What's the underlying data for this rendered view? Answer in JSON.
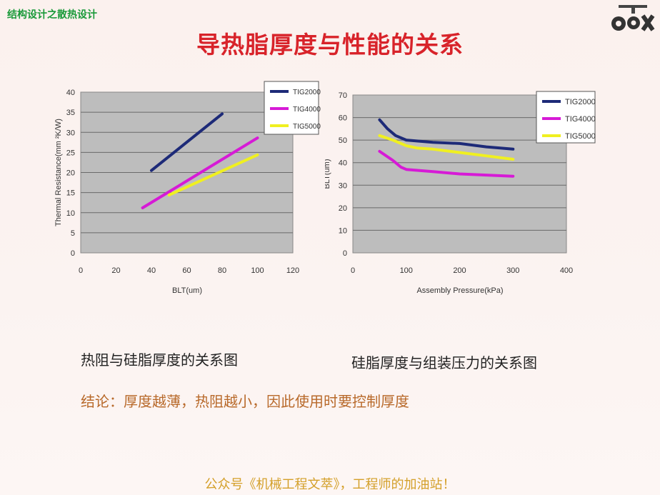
{
  "header": {
    "label": "结构设计之散热设计"
  },
  "logo": {
    "name": "8TX-logo"
  },
  "title": "导热脂厚度与性能的关系",
  "chart_data": [
    {
      "type": "line",
      "title": "",
      "xlabel": "BLT(um)",
      "ylabel": "Thermal Resistance(mm ²K/W)",
      "xlim": [
        0,
        120
      ],
      "ylim": [
        0,
        40
      ],
      "xticks": [
        "0",
        "20",
        "40",
        "60",
        "80",
        "100",
        "120"
      ],
      "yticks": [
        "0",
        "5",
        "10",
        "15",
        "20",
        "25",
        "30",
        "35",
        "40"
      ],
      "grid": true,
      "legend": "top-right",
      "series": [
        {
          "name": "TIG2000",
          "color": "#1d2a78",
          "x": [
            40,
            80
          ],
          "y": [
            20.5,
            34.6
          ]
        },
        {
          "name": "TIG4000",
          "color": "#d61ad6",
          "x": [
            35,
            100
          ],
          "y": [
            11.2,
            28.6
          ]
        },
        {
          "name": "TIG5000",
          "color": "#f0f020",
          "x": [
            50,
            100
          ],
          "y": [
            14.4,
            24.4
          ]
        }
      ],
      "caption": "热阻与硅脂厚度的关系图"
    },
    {
      "type": "line",
      "title": "",
      "xlabel": "Assembly Pressure(kPa)",
      "ylabel": "BLT(um)",
      "xlim": [
        0,
        400
      ],
      "ylim": [
        0,
        70
      ],
      "xticks": [
        "0",
        "100",
        "200",
        "300",
        "400"
      ],
      "yticks": [
        "0",
        "10",
        "20",
        "30",
        "40",
        "50",
        "60",
        "70"
      ],
      "grid": true,
      "legend": "top-right",
      "series": [
        {
          "name": "TIG2000",
          "color": "#1d2a78",
          "x": [
            50,
            65,
            80,
            100,
            150,
            200,
            250,
            300
          ],
          "y": [
            59,
            55,
            52,
            50,
            49,
            48.5,
            47,
            46
          ]
        },
        {
          "name": "TIG4000",
          "color": "#d61ad6",
          "x": [
            50,
            75,
            90,
            100,
            150,
            200,
            250,
            300
          ],
          "y": [
            45,
            41,
            38,
            37,
            36,
            35,
            34.5,
            34
          ]
        },
        {
          "name": "TIG5000",
          "color": "#f0f020",
          "x": [
            50,
            75,
            100,
            120,
            150,
            200,
            250,
            300
          ],
          "y": [
            52,
            50,
            47.5,
            46.5,
            46,
            44.5,
            43,
            41.5
          ]
        }
      ],
      "caption": "硅脂厚度与组装压力的关系图"
    }
  ],
  "conclusion": "结论：厚度越薄，热阻越小，因此使用时要控制厚度",
  "footer": "公众号《机械工程文萃》，工程师的加油站！"
}
